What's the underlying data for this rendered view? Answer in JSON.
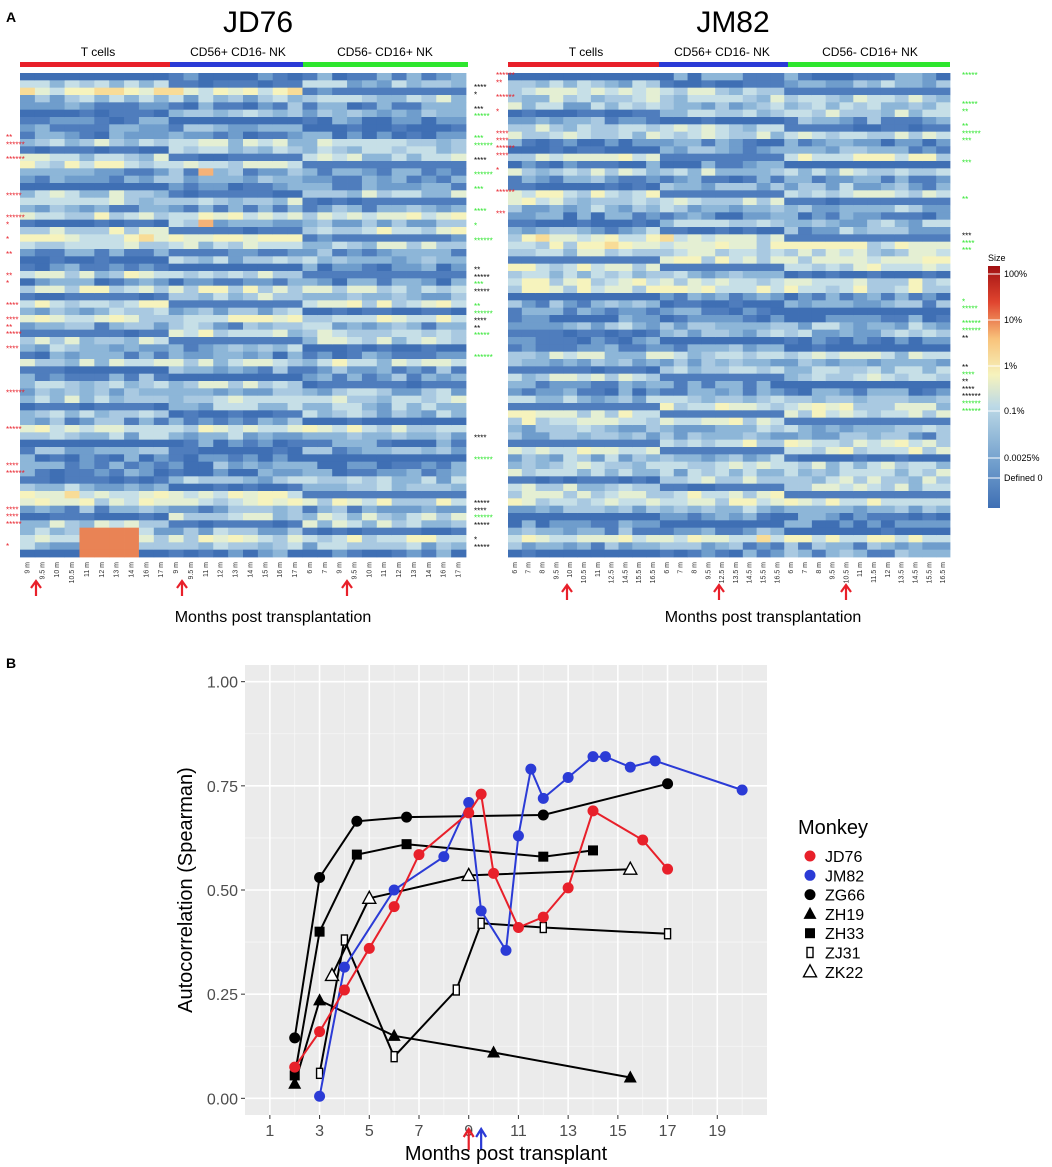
{
  "panel_a": {
    "label": "A",
    "size_legend": {
      "title": "Size",
      "labels": [
        "100%",
        "10%",
        "1%",
        "0.1%",
        "0.0025%",
        "Defined 0"
      ]
    },
    "heatmaps": [
      {
        "title": "JD76",
        "groups": [
          "T cells",
          "CD56+ CD16- NK",
          "CD56- CD16+ NK"
        ],
        "group_colors": [
          "#e8202a",
          "#2b3bd6",
          "#2ee62e"
        ],
        "col_labels": [
          "9 m",
          "9.5 m",
          "10 m",
          "10.5 m",
          "11 m",
          "12 m",
          "13 m",
          "14 m",
          "16 m",
          "17 m",
          "9 m",
          "9.5 m",
          "11 m",
          "12 m",
          "13 m",
          "14 m",
          "15 m",
          "16 m",
          "17 m",
          "6 m",
          "7 m",
          "9 m",
          "9.5 m",
          "10 m",
          "11 m",
          "12 m",
          "13 m",
          "14 m",
          "16 m",
          "17 m"
        ],
        "xlabel": "Months post transplantation"
      },
      {
        "title": "JM82",
        "groups": [
          "T cells",
          "CD56+ CD16- NK",
          "CD56- CD16+ NK"
        ],
        "group_colors": [
          "#e8202a",
          "#2b3bd6",
          "#2ee62e"
        ],
        "col_labels": [
          "6 m",
          "7 m",
          "8 m",
          "9.5 m",
          "10 m",
          "10.5 m",
          "11 m",
          "12.5 m",
          "14.5 m",
          "15.5 m",
          "16.5 m",
          "6 m",
          "7 m",
          "8 m",
          "9.5 m",
          "12.5 m",
          "13.5 m",
          "14.5 m",
          "15.5 m",
          "16.5 m",
          "6 m",
          "7 m",
          "8 m",
          "9.5 m",
          "10.5 m",
          "11 m",
          "11.5 m",
          "12 m",
          "13.5 m",
          "14.5 m",
          "15.5 m",
          "16.5 m"
        ],
        "xlabel": "Months post transplantation"
      }
    ]
  },
  "panel_b": {
    "label": "B"
  },
  "chart_data": {
    "type": "line",
    "title": "",
    "xlabel": "Months post transplant",
    "ylabel": "Autocorrelation (Spearman)",
    "xlim": [
      0,
      21
    ],
    "ylim": [
      -0.04,
      1.04
    ],
    "xticks": [
      1,
      3,
      5,
      7,
      9,
      11,
      13,
      15,
      17,
      19
    ],
    "yticks": [
      0.0,
      0.25,
      0.5,
      0.75,
      1.0
    ],
    "ytick_labels": [
      "0.00",
      "0.25",
      "0.50",
      "0.75",
      "1.00"
    ],
    "legend_title": "Monkey",
    "legend_position": "right",
    "arrows": [
      {
        "x": 9,
        "color": "#e8202a"
      },
      {
        "x": 9.5,
        "color": "#2b3bd6"
      }
    ],
    "series": [
      {
        "name": "JD76",
        "color": "#e8202a",
        "marker": "circle",
        "x": [
          2,
          3,
          4,
          5,
          6,
          7,
          9,
          9.5,
          10,
          11,
          12,
          13,
          14,
          16,
          17
        ],
        "y": [
          0.075,
          0.16,
          0.26,
          0.36,
          0.46,
          0.585,
          0.685,
          0.73,
          0.54,
          0.41,
          0.435,
          0.505,
          0.69,
          0.62,
          0.55
        ]
      },
      {
        "name": "JM82",
        "color": "#2b3bd6",
        "marker": "circle",
        "x": [
          3,
          4,
          6,
          8,
          9,
          9.5,
          10.5,
          11,
          11.5,
          12,
          13,
          14,
          14.5,
          15.5,
          16.5,
          20
        ],
        "y": [
          0.005,
          0.315,
          0.5,
          0.58,
          0.71,
          0.45,
          0.355,
          0.63,
          0.79,
          0.72,
          0.77,
          0.82,
          0.82,
          0.795,
          0.81,
          0.74
        ]
      },
      {
        "name": "ZG66",
        "color": "#000000",
        "marker": "circle",
        "x": [
          2,
          3,
          4.5,
          6.5,
          12,
          17
        ],
        "y": [
          0.145,
          0.53,
          0.665,
          0.675,
          0.68,
          0.755
        ]
      },
      {
        "name": "ZH19",
        "color": "#000000",
        "marker": "triangle",
        "x": [
          2,
          3,
          6,
          10,
          15.5
        ],
        "y": [
          0.035,
          0.235,
          0.15,
          0.11,
          0.05
        ]
      },
      {
        "name": "ZH33",
        "color": "#000000",
        "marker": "square",
        "x": [
          2,
          3,
          4.5,
          6.5,
          12,
          14
        ],
        "y": [
          0.055,
          0.4,
          0.585,
          0.61,
          0.58,
          0.595
        ]
      },
      {
        "name": "ZJ31",
        "color": "#000000",
        "marker": "hollow-square",
        "x": [
          3,
          4,
          6,
          8.5,
          9.5,
          12,
          17
        ],
        "y": [
          0.06,
          0.38,
          0.1,
          0.26,
          0.42,
          0.41,
          0.395
        ]
      },
      {
        "name": "ZK22",
        "color": "#000000",
        "marker": "hollow-triangle",
        "x": [
          3.5,
          5,
          9,
          15.5
        ],
        "y": [
          0.295,
          0.48,
          0.535,
          0.55
        ]
      }
    ]
  }
}
